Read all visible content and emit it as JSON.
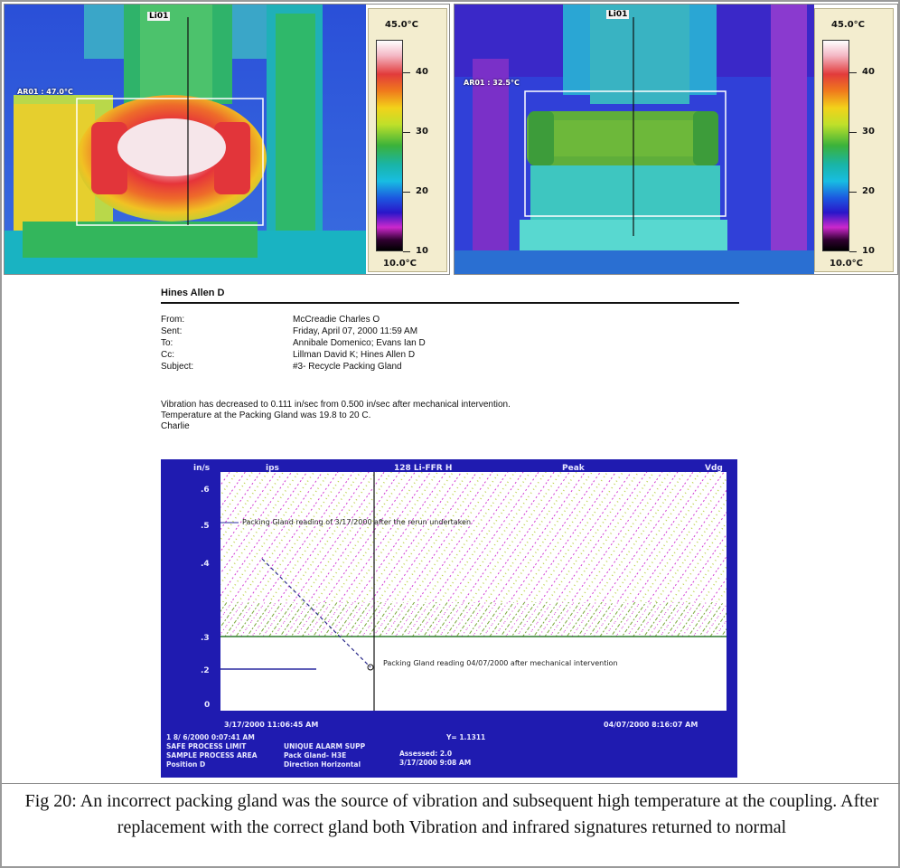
{
  "thermal_left": {
    "line_label": "Li01",
    "area_label": "AR01 : 47.0°C",
    "scale_max": "45.0°C",
    "scale_min": "10.0°C",
    "ticks": [
      "40",
      "30",
      "20",
      "10"
    ]
  },
  "thermal_right": {
    "line_label": "Li01",
    "area_label": "AR01 : 32.5°C",
    "scale_max": "45.0°C",
    "scale_min": "10.0°C",
    "ticks": [
      "40",
      "30",
      "20",
      "10"
    ]
  },
  "email": {
    "name": "Hines Allen D",
    "fields": [
      {
        "label": "From:",
        "value": "McCreadie Charles O"
      },
      {
        "label": "Sent:",
        "value": "Friday, April 07, 2000 11:59 AM"
      },
      {
        "label": "To:",
        "value": "Annibale Domenico; Evans Ian D"
      },
      {
        "label": "Cc:",
        "value": "Lillman David K; Hines Allen D"
      },
      {
        "label": "Subject:",
        "value": "#3- Recycle Packing Gland"
      }
    ],
    "body": [
      "Vibration has decreased to 0.111 in/sec from 0.500 in/sec after mechanical intervention.",
      "Temperature at the Packing Gland was 19.8 to 20 C.",
      "Charlie"
    ]
  },
  "plot": {
    "header": {
      "unit": "in/s",
      "unit2": "ips",
      "center": "128 Li-FFR H",
      "peak": "Peak",
      "mode": "Vdg"
    },
    "y_ticks": [
      ".6",
      ".5",
      ".4",
      ".3",
      ".2",
      "0"
    ],
    "annotation_top": "Packing Gland reading of 3/17/2000 after the rerun undertaken",
    "annotation_bottom": "Packing Gland reading 04/07/2000 after mechanical intervention",
    "date_left": "3/17/2000 11:06:45 AM",
    "date_right": "04/07/2000 8:16:07 AM",
    "info_lines": [
      [
        "1 8/ 6/2000 0:07:41 AM",
        "",
        "Y= 1.1311"
      ],
      [
        "SAFE PROCESS LIMIT",
        "UNIQUE ALARM SUPP",
        "Assessed: 2.0"
      ],
      [
        "SAMPLE PROCESS AREA",
        "Pack Gland- H3E",
        "3/17/2000 9:08 AM"
      ],
      [
        "Position D",
        "Direction Horizontal",
        ""
      ]
    ]
  },
  "caption": "Fig 20: An incorrect packing gland was the source of vibration and subsequent high temperature at the coupling. After replacement with the correct gland both Vibration and infrared signatures returned to normal"
}
